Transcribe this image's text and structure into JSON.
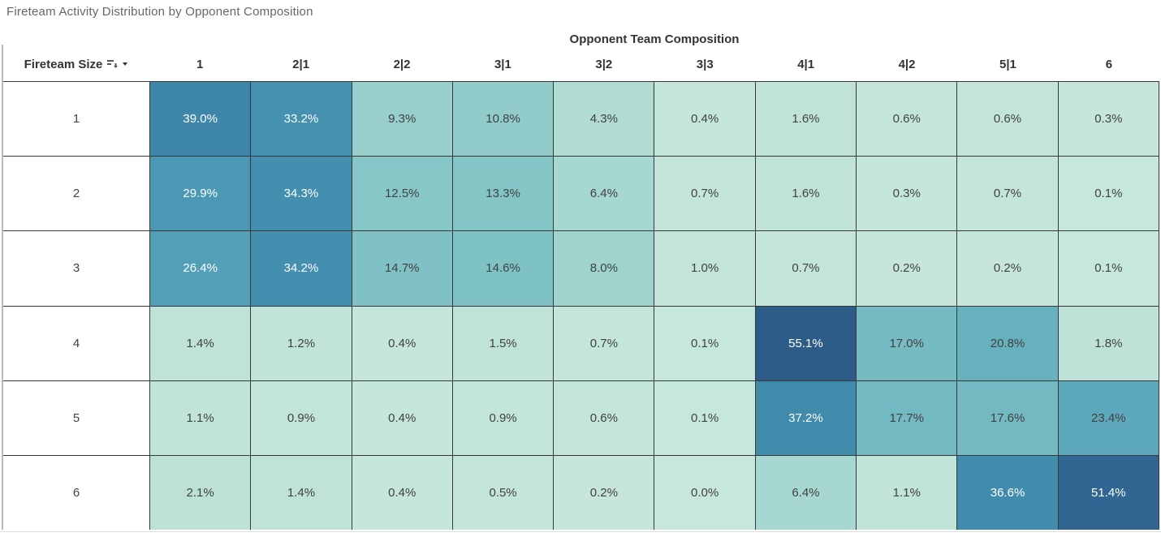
{
  "title": "Fireteam Activity Distribution by Opponent Composition",
  "table": {
    "row_header_label": "Fireteam Size",
    "col_group_label": "Opponent Team Composition",
    "icons": [
      "sort-descending-icon",
      "caret-down-icon"
    ]
  },
  "colors": {
    "scale_stops": [
      "#c7e7db",
      "#82c4c5",
      "#4e9cb6",
      "#3a82a8",
      "#2d5c88"
    ],
    "dark_text": "#414141",
    "light_text": "#fcfefe",
    "white_text_threshold": 26,
    "border": "#383838",
    "header_text": "#333333",
    "title_text": "#666666"
  },
  "chart_data": {
    "type": "heatmap",
    "title": "Fireteam Activity Distribution by Opponent Composition",
    "x_axis_label": "Opponent Team Composition",
    "y_axis_label": "Fireteam Size",
    "columns": [
      "1",
      "2|1",
      "2|2",
      "3|1",
      "3|2",
      "3|3",
      "4|1",
      "4|2",
      "5|1",
      "6"
    ],
    "rows": [
      "1",
      "2",
      "3",
      "4",
      "5",
      "6"
    ],
    "unit": "%",
    "value_range": [
      0.0,
      55.1
    ],
    "legend": "off",
    "values_percent": [
      [
        39.0,
        33.2,
        9.3,
        10.8,
        4.3,
        0.4,
        1.6,
        0.6,
        0.6,
        0.3
      ],
      [
        29.9,
        34.3,
        12.5,
        13.3,
        6.4,
        0.7,
        1.6,
        0.3,
        0.7,
        0.1
      ],
      [
        26.4,
        34.2,
        14.7,
        14.6,
        8.0,
        1.0,
        0.7,
        0.2,
        0.2,
        0.1
      ],
      [
        1.4,
        1.2,
        0.4,
        1.5,
        0.7,
        0.1,
        55.1,
        17.0,
        20.8,
        1.8
      ],
      [
        1.1,
        0.9,
        0.4,
        0.9,
        0.6,
        0.1,
        37.2,
        17.7,
        17.6,
        23.4
      ],
      [
        2.1,
        1.4,
        0.4,
        0.5,
        0.2,
        0.0,
        6.4,
        1.1,
        36.6,
        51.4
      ]
    ]
  }
}
